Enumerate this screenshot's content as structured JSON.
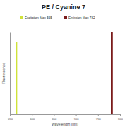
{
  "chart_data": {
    "type": "bar",
    "title": "PE / Cyanine 7",
    "x_label": "Wavelength (nm)",
    "y_label": "Fluorescence",
    "series": [
      {
        "name": "Excitation Max 565",
        "color": "#cfe23a",
        "x": [
          565
        ],
        "values": [
          88
        ]
      },
      {
        "name": "Emission Max 782",
        "color": "#7a1b1b",
        "x": [
          782
        ],
        "values": [
          100
        ]
      }
    ],
    "xlim": [
      550,
      800
    ],
    "xticks": [
      550,
      600,
      650,
      700,
      750,
      800
    ],
    "ylim": [
      0,
      100
    ],
    "tick_labels": "x",
    "legend": "top"
  }
}
